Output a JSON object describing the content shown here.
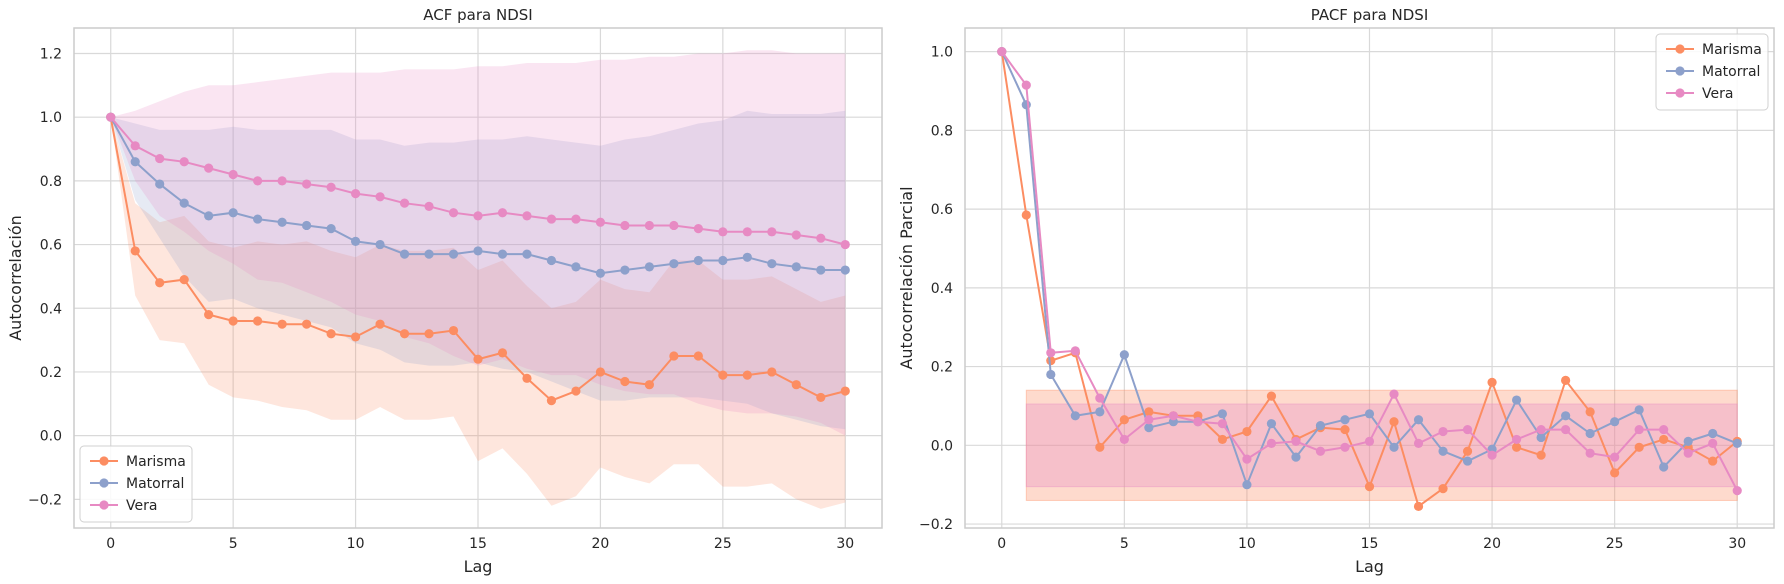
{
  "colors": {
    "Marisma": "#fc8d62",
    "Matorral": "#8da0cb",
    "Vera": "#e78ac3",
    "grid": "#d9d9d9",
    "frame": "#cccccc"
  },
  "chart_data": [
    {
      "type": "line",
      "title": "ACF para NDSI",
      "xlabel": "Lag",
      "ylabel": "Autocorrelación",
      "xlim": [
        -1.5,
        31.5
      ],
      "ylim": [
        -0.29,
        1.28
      ],
      "xticks": [
        0,
        5,
        10,
        15,
        20,
        25,
        30
      ],
      "xtick_labels": [
        "0",
        "5",
        "10",
        "15",
        "20",
        "25",
        "30"
      ],
      "yticks": [
        -0.2,
        0.0,
        0.2,
        0.4,
        0.6,
        0.8,
        1.0,
        1.2
      ],
      "ytick_labels": [
        "−0.2",
        "0.0",
        "0.2",
        "0.4",
        "0.6",
        "0.8",
        "1.0",
        "1.2"
      ],
      "grid": true,
      "legend": "lower-left",
      "x": [
        0,
        1,
        2,
        3,
        4,
        5,
        6,
        7,
        8,
        9,
        10,
        11,
        12,
        13,
        14,
        15,
        16,
        17,
        18,
        19,
        20,
        21,
        22,
        23,
        24,
        25,
        26,
        27,
        28,
        29,
        30
      ],
      "series": [
        {
          "name": "Marisma",
          "values": [
            1.0,
            0.58,
            0.48,
            0.49,
            0.38,
            0.36,
            0.36,
            0.35,
            0.35,
            0.32,
            0.31,
            0.35,
            0.32,
            0.32,
            0.33,
            0.24,
            0.26,
            0.18,
            0.11,
            0.14,
            0.2,
            0.17,
            0.16,
            0.25,
            0.25,
            0.19,
            0.19,
            0.2,
            0.16,
            0.12,
            0.14
          ],
          "band_upper": [
            1.0,
            0.73,
            0.67,
            0.69,
            0.61,
            0.59,
            0.61,
            0.6,
            0.61,
            0.58,
            0.56,
            0.6,
            0.58,
            0.58,
            0.59,
            0.52,
            0.55,
            0.47,
            0.4,
            0.42,
            0.49,
            0.46,
            0.45,
            0.55,
            0.55,
            0.49,
            0.49,
            0.5,
            0.46,
            0.42,
            0.44
          ],
          "band_lower": [
            1.0,
            0.44,
            0.3,
            0.29,
            0.16,
            0.12,
            0.11,
            0.09,
            0.08,
            0.05,
            0.05,
            0.09,
            0.05,
            0.05,
            0.06,
            -0.08,
            -0.04,
            -0.12,
            -0.22,
            -0.19,
            -0.1,
            -0.13,
            -0.15,
            -0.09,
            -0.09,
            -0.16,
            -0.16,
            -0.15,
            -0.2,
            -0.23,
            -0.21
          ]
        },
        {
          "name": "Matorral",
          "values": [
            1.0,
            0.86,
            0.79,
            0.73,
            0.69,
            0.7,
            0.68,
            0.67,
            0.66,
            0.65,
            0.61,
            0.6,
            0.57,
            0.57,
            0.57,
            0.58,
            0.57,
            0.57,
            0.55,
            0.53,
            0.51,
            0.52,
            0.53,
            0.54,
            0.55,
            0.55,
            0.56,
            0.54,
            0.53,
            0.52,
            0.52
          ],
          "band_upper": [
            1.0,
            0.98,
            0.96,
            0.96,
            0.96,
            0.97,
            0.96,
            0.96,
            0.96,
            0.96,
            0.93,
            0.93,
            0.91,
            0.92,
            0.92,
            0.93,
            0.93,
            0.94,
            0.93,
            0.92,
            0.91,
            0.93,
            0.94,
            0.96,
            0.98,
            0.99,
            1.02,
            1.01,
            1.01,
            1.01,
            1.02
          ],
          "band_lower": [
            1.0,
            0.74,
            0.62,
            0.5,
            0.42,
            0.43,
            0.4,
            0.38,
            0.36,
            0.34,
            0.29,
            0.27,
            0.23,
            0.22,
            0.22,
            0.23,
            0.21,
            0.2,
            0.17,
            0.14,
            0.11,
            0.11,
            0.12,
            0.12,
            0.12,
            0.11,
            0.1,
            0.07,
            0.05,
            0.03,
            0.02
          ]
        },
        {
          "name": "Vera",
          "values": [
            1.0,
            0.91,
            0.87,
            0.86,
            0.84,
            0.82,
            0.8,
            0.8,
            0.79,
            0.78,
            0.76,
            0.75,
            0.73,
            0.72,
            0.7,
            0.69,
            0.7,
            0.69,
            0.68,
            0.68,
            0.67,
            0.66,
            0.66,
            0.66,
            0.65,
            0.64,
            0.64,
            0.64,
            0.63,
            0.62,
            0.6
          ],
          "band_upper": [
            1.0,
            1.02,
            1.05,
            1.08,
            1.1,
            1.1,
            1.11,
            1.12,
            1.13,
            1.14,
            1.14,
            1.14,
            1.15,
            1.15,
            1.15,
            1.16,
            1.16,
            1.17,
            1.17,
            1.17,
            1.18,
            1.18,
            1.19,
            1.19,
            1.2,
            1.2,
            1.21,
            1.21,
            1.2,
            1.2,
            1.2
          ],
          "band_lower": [
            1.0,
            0.8,
            0.69,
            0.64,
            0.58,
            0.54,
            0.49,
            0.48,
            0.45,
            0.42,
            0.38,
            0.36,
            0.31,
            0.29,
            0.25,
            0.22,
            0.24,
            0.21,
            0.19,
            0.19,
            0.16,
            0.14,
            0.13,
            0.13,
            0.1,
            0.08,
            0.07,
            0.07,
            0.06,
            0.04,
            0.0
          ]
        }
      ]
    },
    {
      "type": "line",
      "title": "PACF para NDSI",
      "xlabel": "Lag",
      "ylabel": "Autocorrelación Parcial",
      "xlim": [
        -1.5,
        31.5
      ],
      "ylim": [
        -0.21,
        1.06
      ],
      "xticks": [
        0,
        5,
        10,
        15,
        20,
        25,
        30
      ],
      "xtick_labels": [
        "0",
        "5",
        "10",
        "15",
        "20",
        "25",
        "30"
      ],
      "yticks": [
        -0.2,
        0.0,
        0.2,
        0.4,
        0.6,
        0.8,
        1.0
      ],
      "ytick_labels": [
        "−0.2",
        "0.0",
        "0.2",
        "0.4",
        "0.6",
        "0.8",
        "1.0"
      ],
      "grid": true,
      "legend": "top-right",
      "x": [
        0,
        1,
        2,
        3,
        4,
        5,
        6,
        7,
        8,
        9,
        10,
        11,
        12,
        13,
        14,
        15,
        16,
        17,
        18,
        19,
        20,
        21,
        22,
        23,
        24,
        25,
        26,
        27,
        28,
        29,
        30
      ],
      "confidence_bands": [
        {
          "series": "Marisma",
          "x_range": [
            1,
            30
          ],
          "upper": 0.14,
          "lower": -0.14
        },
        {
          "series": "Vera",
          "x_range": [
            1,
            30
          ],
          "upper": 0.105,
          "lower": -0.105
        }
      ],
      "series": [
        {
          "name": "Marisma",
          "values": [
            1.0,
            0.585,
            0.215,
            0.235,
            -0.005,
            0.065,
            0.085,
            0.075,
            0.075,
            0.015,
            0.035,
            0.125,
            0.015,
            0.045,
            0.04,
            -0.105,
            0.06,
            -0.155,
            -0.11,
            -0.015,
            0.16,
            -0.005,
            -0.025,
            0.165,
            0.085,
            -0.07,
            -0.005,
            0.015,
            -0.005,
            -0.04,
            0.01
          ]
        },
        {
          "name": "Matorral",
          "values": [
            1.0,
            0.865,
            0.18,
            0.075,
            0.085,
            0.23,
            0.045,
            0.06,
            0.06,
            0.08,
            -0.1,
            0.055,
            -0.03,
            0.05,
            0.065,
            0.08,
            -0.005,
            0.065,
            -0.015,
            -0.04,
            -0.01,
            0.115,
            0.02,
            0.075,
            0.03,
            0.06,
            0.09,
            -0.055,
            0.01,
            0.03,
            0.005
          ]
        },
        {
          "name": "Vera",
          "values": [
            1.0,
            0.915,
            0.235,
            0.24,
            0.12,
            0.015,
            0.065,
            0.075,
            0.06,
            0.055,
            -0.035,
            0.005,
            0.01,
            -0.015,
            -0.005,
            0.01,
            0.13,
            0.005,
            0.035,
            0.04,
            -0.025,
            0.015,
            0.04,
            0.04,
            -0.02,
            -0.03,
            0.04,
            0.04,
            -0.02,
            0.005,
            -0.115
          ]
        }
      ]
    }
  ]
}
